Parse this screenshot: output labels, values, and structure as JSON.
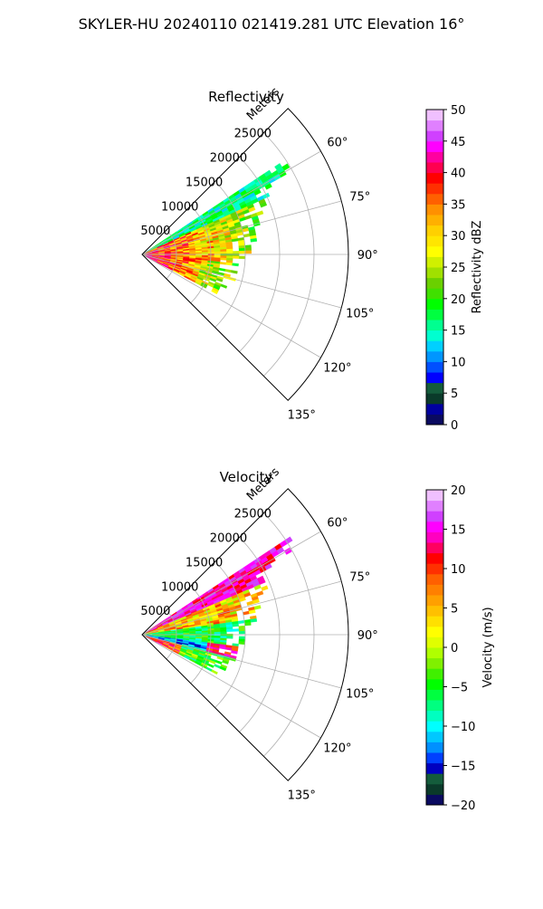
{
  "page": {
    "suptitle": "SKYLER-HU  20240110  021419.281 UTC Elevation 16°"
  },
  "chart_data": [
    {
      "type": "heatmap",
      "projection": "polar-sector",
      "title": "Reflectivity",
      "radial_label": "Meters",
      "radial_ticks": [
        5000,
        10000,
        15000,
        20000,
        25000
      ],
      "radial_tick_labels": [
        "5000",
        "10000",
        "15000",
        "20000",
        "25000"
      ],
      "r_range": [
        0,
        30000
      ],
      "theta_range_deg": [
        45,
        135
      ],
      "theta_ticks_deg": [
        60,
        75,
        90,
        105,
        120,
        135
      ],
      "theta_tick_labels": [
        "60°",
        "75°",
        "90°",
        "105°",
        "120°",
        "135°"
      ],
      "grid": true,
      "colorbar": {
        "label": "Reflectivity dBZ",
        "range": [
          0,
          50
        ],
        "ticks": [
          0,
          5,
          10,
          15,
          20,
          25,
          30,
          35,
          40,
          45,
          50
        ],
        "tick_labels": [
          "0",
          "5",
          "10",
          "15",
          "20",
          "25",
          "30",
          "35",
          "40",
          "45",
          "50"
        ],
        "colors": [
          "#0a0a60",
          "#0000a0",
          "#0a3a2a",
          "#145c3c",
          "#0000ff",
          "#0050ff",
          "#0096ff",
          "#00d0ff",
          "#00ffd0",
          "#00ff90",
          "#00ff40",
          "#00ff00",
          "#40e000",
          "#6ad000",
          "#a0e000",
          "#d0f000",
          "#ffff00",
          "#ffe600",
          "#ffd000",
          "#ffb000",
          "#ff9000",
          "#ff6000",
          "#ff3000",
          "#ff0000",
          "#ff0050",
          "#ff00a0",
          "#ff00ff",
          "#d040ff",
          "#e080ff",
          "#f0c0ff"
        ]
      }
    },
    {
      "type": "heatmap",
      "projection": "polar-sector",
      "title": "Velocity",
      "radial_label": "Meters",
      "radial_ticks": [
        5000,
        10000,
        15000,
        20000,
        25000
      ],
      "radial_tick_labels": [
        "5000",
        "10000",
        "15000",
        "20000",
        "25000"
      ],
      "r_range": [
        0,
        30000
      ],
      "theta_range_deg": [
        45,
        135
      ],
      "theta_ticks_deg": [
        60,
        75,
        90,
        105,
        120,
        135
      ],
      "theta_tick_labels": [
        "60°",
        "75°",
        "90°",
        "105°",
        "120°",
        "135°"
      ],
      "grid": true,
      "colorbar": {
        "label": "Velocity (m/s)",
        "range": [
          -20,
          20
        ],
        "ticks": [
          -20,
          -15,
          -10,
          -5,
          0,
          5,
          10,
          15,
          20
        ],
        "tick_labels": [
          "−20",
          "−15",
          "−10",
          "−5",
          "0",
          "5",
          "10",
          "15",
          "20"
        ],
        "colors": [
          "#0a0a60",
          "#0a3a2a",
          "#145c3c",
          "#0000c0",
          "#0040ff",
          "#0090ff",
          "#00c8ff",
          "#00ffff",
          "#00ffc0",
          "#00ff80",
          "#00ff40",
          "#00ff00",
          "#40f000",
          "#80f000",
          "#b0ff00",
          "#e0ff00",
          "#ffff00",
          "#ffe000",
          "#ffc000",
          "#ffa000",
          "#ff8000",
          "#ff6000",
          "#ff3000",
          "#ff0000",
          "#ff0060",
          "#ff00c0",
          "#ff00ff",
          "#d040ff",
          "#e080ff",
          "#f0c0ff"
        ]
      }
    }
  ]
}
